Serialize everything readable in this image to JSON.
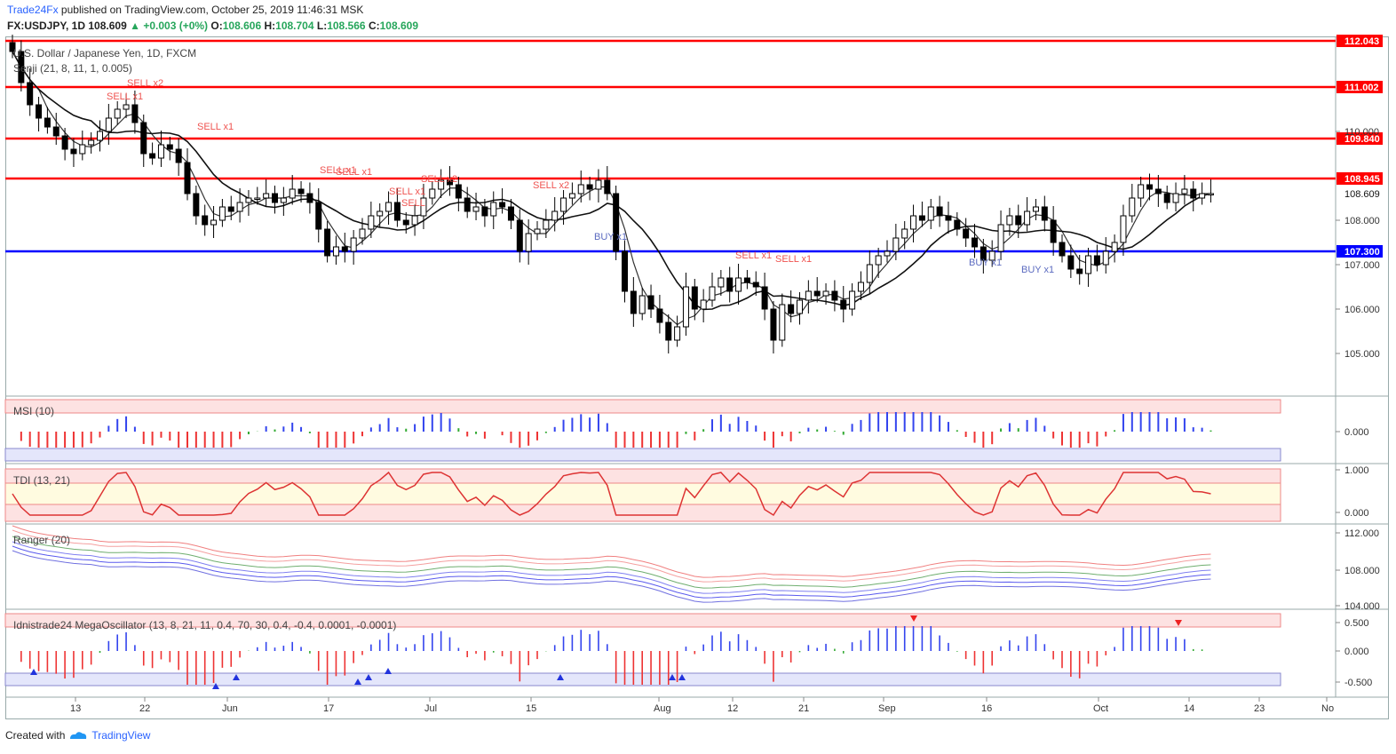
{
  "header": {
    "publisher": "Trade24Fx",
    "published_text": " published on TradingView.com, October 25, 2019 11:46:31 MSK",
    "symbol_line": "FX:USDJPY, 1D  108.609",
    "change": "+0.003 (+0%)",
    "ohlc": {
      "o_label": "O:",
      "o": "108.606",
      "h_label": "H:",
      "h": "108.704",
      "l_label": "L:",
      "l": "108.566",
      "c_label": "C:",
      "c": "108.609"
    }
  },
  "chart": {
    "title": "U.S. Dollar / Japanese Yen, 1D, FXCM",
    "overlay_label": "Senji (21, 8, 11, 1, 0.005)",
    "colors": {
      "up": "#ffffff",
      "down": "#000000",
      "resistance": "#ff0000",
      "support": "#0000ff",
      "sell": "#ef5350",
      "buy": "#5c6bc0"
    },
    "price_levels": [
      {
        "value": "112.043",
        "color": "#ff0000"
      },
      {
        "value": "111.002",
        "color": "#ff0000"
      },
      {
        "value": "109.840",
        "color": "#ff0000"
      },
      {
        "value": "108.945",
        "color": "#ff0000"
      },
      {
        "value": "107.300",
        "color": "#0000ff"
      }
    ],
    "current_price": "108.609",
    "y_ticks": [
      "110.000",
      "108.000",
      "107.000",
      "106.000",
      "105.000"
    ],
    "x_ticks": [
      "13",
      "22",
      "Jun",
      "17",
      "Jul",
      "15",
      "Aug",
      "12",
      "21",
      "Sep",
      "16",
      "Oct",
      "14",
      "23",
      "No"
    ],
    "signals": [
      "SELL x1",
      "SELL x2",
      "SELL x1",
      "SELL x1",
      "SELL x1",
      "SELL x1",
      "SELL x2",
      "SELL",
      "SELL x2",
      "BUY x1",
      "SELL x1",
      "SELL x1",
      "BUY x1",
      "BUY x1"
    ]
  },
  "panels": {
    "msi": {
      "label": "MSI (10)",
      "ticks": [
        "0.000"
      ]
    },
    "tdi": {
      "label": "TDI (13, 21)",
      "ticks": [
        "1.000",
        "0.000"
      ]
    },
    "ranger": {
      "label": "Ranger (20)",
      "ticks": [
        "112.000",
        "108.000",
        "104.000"
      ]
    },
    "mega": {
      "label": "Idnistrade24 MegaOscillator (13, 8, 21, 11, 0.4, 70, 30, 0.4, -0.4, 0.0001, -0.0001)",
      "ticks": [
        "0.500",
        "0.000",
        "-0.500"
      ]
    }
  },
  "footer": {
    "created_with": "Created with",
    "brand": "TradingView"
  }
}
